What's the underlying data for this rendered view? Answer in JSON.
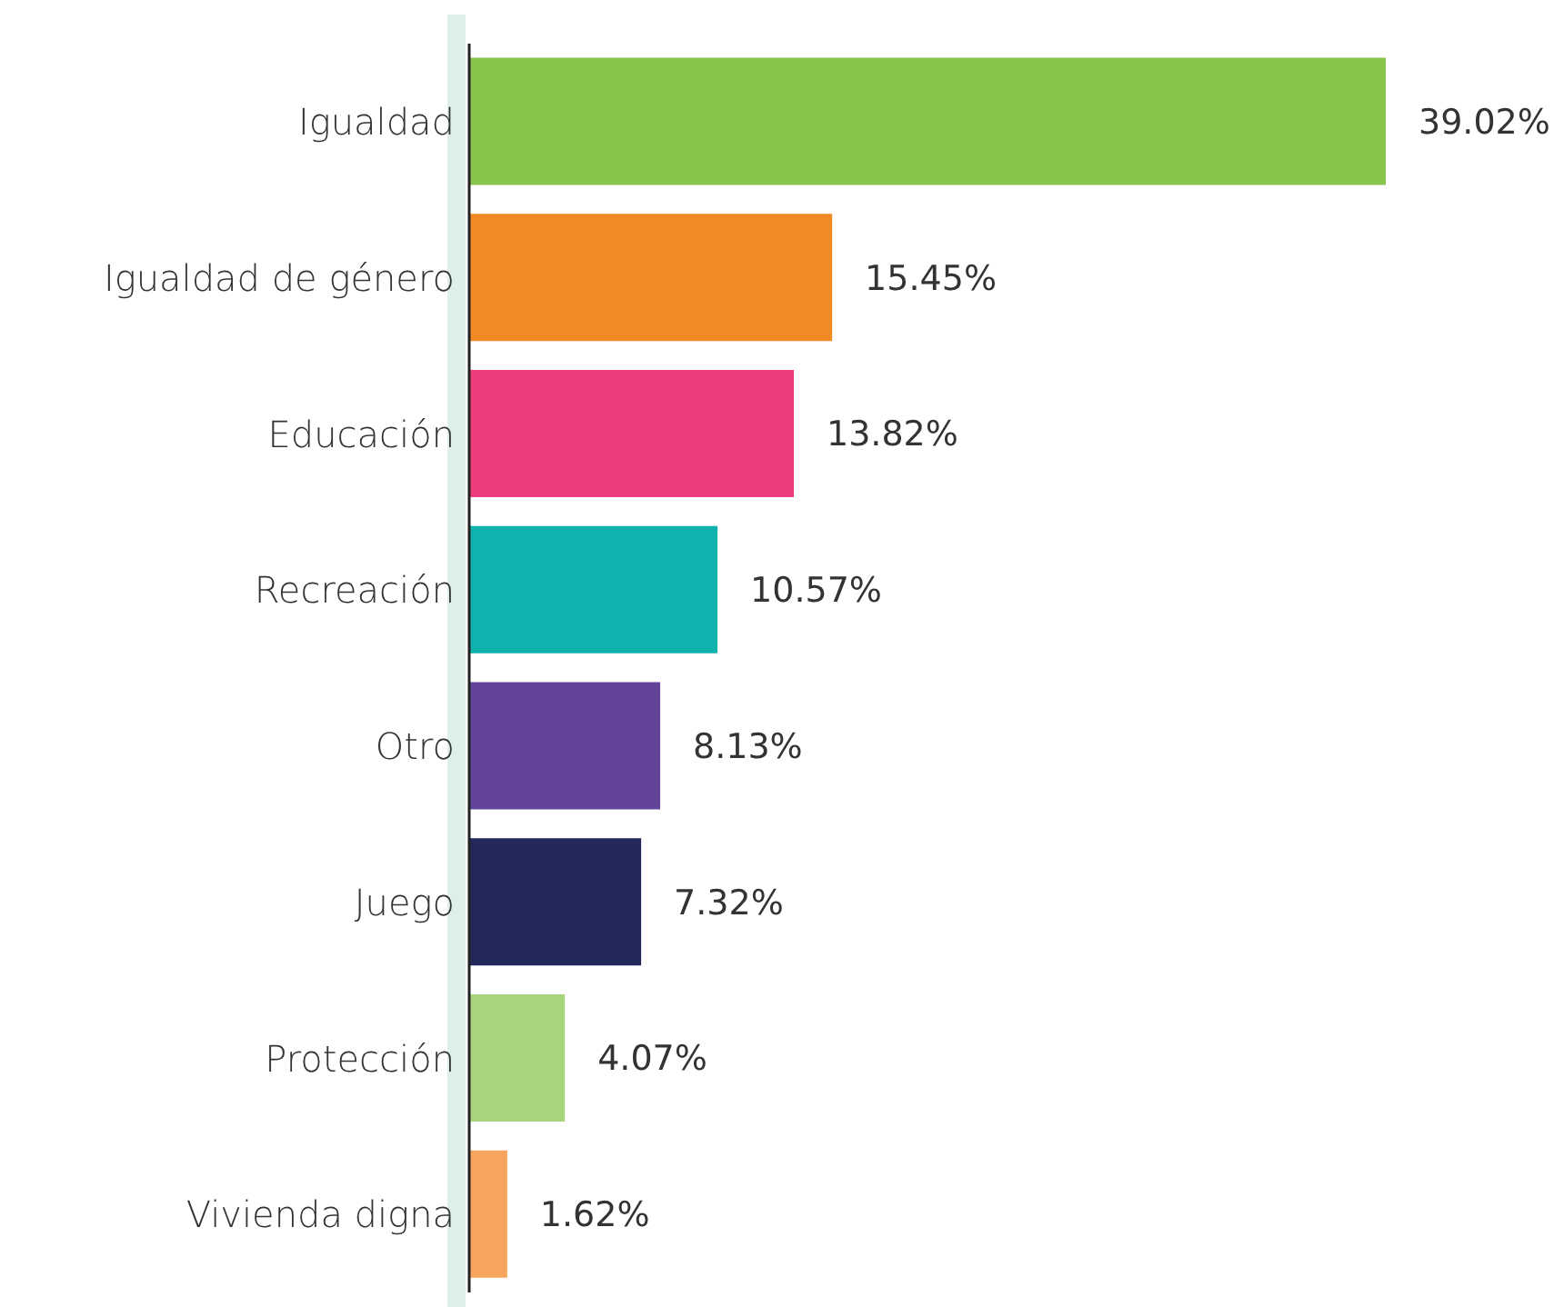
{
  "chart_data": {
    "type": "bar",
    "orientation": "horizontal",
    "categories": [
      "Igualdad",
      "Igualdad de género",
      "Educación",
      "Recreación",
      "Otro",
      "Juego",
      "Protección",
      "Vivienda digna"
    ],
    "values": [
      39.02,
      15.45,
      13.82,
      10.57,
      8.13,
      7.32,
      4.07,
      1.62
    ],
    "value_labels": [
      "39.02%",
      "15.45%",
      "13.82%",
      "10.57%",
      "8.13%",
      "7.32%",
      "4.07%",
      "1.62%"
    ],
    "colors": [
      "#86c44c",
      "#f28a24",
      "#ee3d7f",
      "#10b2ae",
      "#62459a",
      "#22295a",
      "#a8d47c",
      "#f6a45e"
    ]
  }
}
